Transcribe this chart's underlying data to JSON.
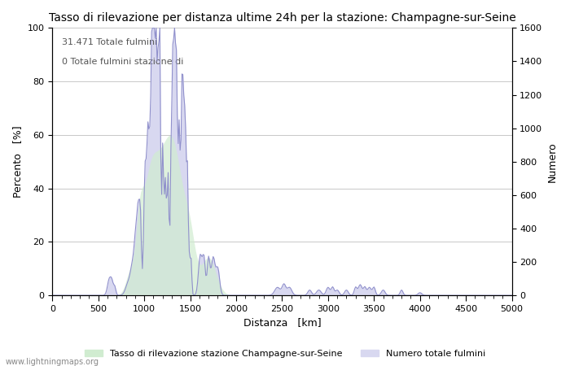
{
  "title": "Tasso di rilevazione per distanza ultime 24h per la stazione: Champagne-sur-Seine",
  "xlabel": "Distanza   [km]",
  "ylabel_left": "Percento   [%]",
  "ylabel_right": "Numero",
  "annotation_line1": "31.471 Totale fulmini",
  "annotation_line2": "0 Totale fulmini stazione di",
  "xlim": [
    0,
    5000
  ],
  "ylim_left": [
    0,
    100
  ],
  "ylim_right": [
    0,
    1600
  ],
  "xticks": [
    0,
    500,
    1000,
    1500,
    2000,
    2500,
    3000,
    3500,
    4000,
    4500,
    5000
  ],
  "yticks_left": [
    0,
    20,
    40,
    60,
    80,
    100
  ],
  "yticks_right": [
    0,
    200,
    400,
    600,
    800,
    1000,
    1200,
    1400,
    1600
  ],
  "background_color": "#ffffff",
  "grid_color": "#c8c8c8",
  "fill_color_blue": "#d8d8f0",
  "fill_color_green": "#d0ecd0",
  "line_color": "#9090cc",
  "watermark": "www.lightningmaps.org",
  "legend_label_green": "Tasso di rilevazione stazione Champagne-sur-Seine",
  "legend_label_blue": "Numero totale fulmini",
  "title_fontsize": 10,
  "axis_label_fontsize": 9,
  "tick_fontsize": 8
}
